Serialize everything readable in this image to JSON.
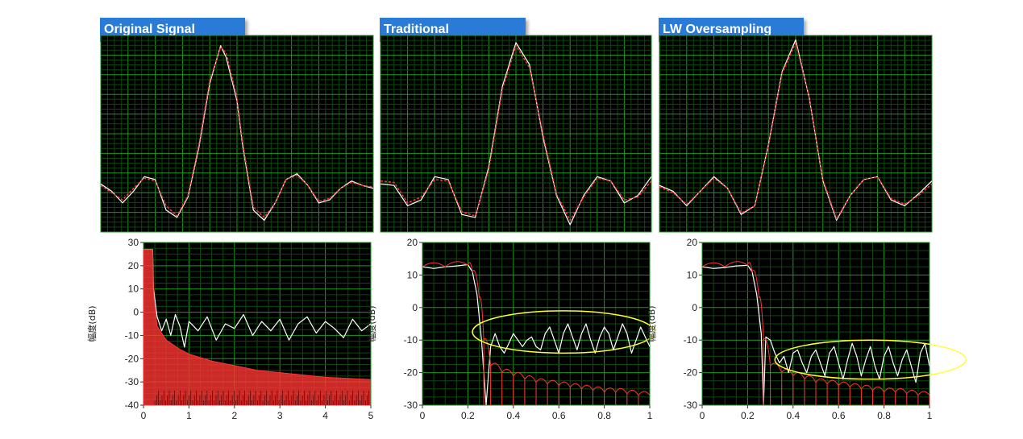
{
  "panels": [
    {
      "title": "Original Signal"
    },
    {
      "title": "Traditional"
    },
    {
      "title": "LW Oversampling"
    }
  ],
  "colors": {
    "plot_bg": "#000000",
    "grid_major": "#1e9a1e",
    "grid_minor": "#0b4a0b",
    "signal": "#ffffff",
    "reference": "#ff3333",
    "highlight": "#ffff33",
    "title_bg": "#2a7ad8"
  },
  "chart_data": [
    {
      "type": "line",
      "panel": "Original Signal",
      "description_hint": "time signal: noisy sinc (white) with smooth sinc reference (red dashed)",
      "xlim": [
        0,
        1
      ],
      "ylim": [
        -0.3,
        1.05
      ],
      "series": [
        {
          "style": "white-solid",
          "x": [
            0,
            0.04,
            0.08,
            0.12,
            0.16,
            0.2,
            0.24,
            0.28,
            0.32,
            0.36,
            0.4,
            0.44,
            0.46,
            0.5,
            0.52,
            0.56,
            0.6,
            0.64,
            0.68,
            0.72,
            0.76,
            0.8,
            0.84,
            0.88,
            0.92,
            0.96,
            1.0
          ],
          "y": [
            0.03,
            -0.02,
            -0.1,
            -0.02,
            0.08,
            0.06,
            -0.15,
            -0.2,
            -0.06,
            0.28,
            0.72,
            0.98,
            0.9,
            0.6,
            0.3,
            -0.15,
            -0.22,
            -0.1,
            0.06,
            0.1,
            0.02,
            -0.1,
            -0.08,
            0.0,
            0.05,
            0.02,
            0.0
          ]
        },
        {
          "style": "red-dashed",
          "x": [
            0,
            0.04,
            0.08,
            0.12,
            0.16,
            0.2,
            0.24,
            0.28,
            0.32,
            0.36,
            0.4,
            0.44,
            0.46,
            0.5,
            0.52,
            0.56,
            0.6,
            0.64,
            0.68,
            0.72,
            0.76,
            0.8,
            0.84,
            0.88,
            0.92,
            0.96,
            1.0
          ],
          "y": [
            0.02,
            -0.03,
            -0.08,
            0.0,
            0.07,
            0.05,
            -0.12,
            -0.19,
            -0.05,
            0.3,
            0.74,
            0.97,
            0.93,
            0.62,
            0.32,
            -0.13,
            -0.2,
            -0.1,
            0.06,
            0.09,
            0.02,
            -0.09,
            -0.07,
            0.0,
            0.04,
            0.02,
            0.01
          ]
        }
      ]
    },
    {
      "type": "line",
      "panel": "Traditional",
      "xlim": [
        0,
        1
      ],
      "ylim": [
        -0.3,
        1.05
      ],
      "series": [
        {
          "style": "white-solid",
          "x": [
            0,
            0.05,
            0.1,
            0.15,
            0.2,
            0.25,
            0.3,
            0.35,
            0.4,
            0.45,
            0.5,
            0.55,
            0.6,
            0.65,
            0.7,
            0.75,
            0.8,
            0.85,
            0.9,
            0.95,
            1.0
          ],
          "y": [
            0.03,
            0.02,
            -0.12,
            -0.08,
            0.08,
            0.06,
            -0.18,
            -0.2,
            0.15,
            0.7,
            1.0,
            0.85,
            0.35,
            -0.05,
            -0.25,
            -0.05,
            0.08,
            0.05,
            -0.1,
            -0.05,
            0.08
          ]
        },
        {
          "style": "red-dashed",
          "x": [
            0,
            0.05,
            0.1,
            0.15,
            0.2,
            0.25,
            0.3,
            0.35,
            0.4,
            0.45,
            0.5,
            0.55,
            0.6,
            0.65,
            0.7,
            0.75,
            0.8,
            0.85,
            0.9,
            0.95,
            1.0
          ],
          "y": [
            0.05,
            0.04,
            -0.1,
            -0.06,
            0.06,
            0.05,
            -0.16,
            -0.19,
            0.13,
            0.68,
            0.98,
            0.83,
            0.37,
            -0.04,
            -0.22,
            -0.06,
            0.07,
            0.05,
            -0.08,
            -0.06,
            0.05
          ]
        }
      ]
    },
    {
      "type": "line",
      "panel": "LW Oversampling",
      "xlim": [
        0,
        1
      ],
      "ylim": [
        -0.3,
        1.05
      ],
      "series": [
        {
          "style": "white-solid",
          "x": [
            0,
            0.05,
            0.1,
            0.15,
            0.2,
            0.25,
            0.3,
            0.35,
            0.4,
            0.45,
            0.5,
            0.55,
            0.6,
            0.65,
            0.7,
            0.75,
            0.8,
            0.85,
            0.9,
            0.95,
            1.0
          ],
          "y": [
            0.02,
            -0.02,
            -0.12,
            -0.02,
            0.08,
            0.0,
            -0.18,
            -0.12,
            0.3,
            0.8,
            1.02,
            0.62,
            0.05,
            -0.22,
            -0.05,
            0.06,
            0.08,
            -0.08,
            -0.12,
            -0.04,
            0.05
          ]
        },
        {
          "style": "red-dashed",
          "x": [
            0,
            0.05,
            0.1,
            0.15,
            0.2,
            0.25,
            0.3,
            0.35,
            0.4,
            0.45,
            0.5,
            0.55,
            0.6,
            0.65,
            0.7,
            0.75,
            0.8,
            0.85,
            0.9,
            0.95,
            1.0
          ],
          "y": [
            0.01,
            -0.03,
            -0.11,
            -0.02,
            0.07,
            0.0,
            -0.17,
            -0.12,
            0.29,
            0.79,
            1.0,
            0.62,
            0.06,
            -0.21,
            -0.05,
            0.06,
            0.08,
            -0.07,
            -0.11,
            -0.05,
            0.03
          ]
        }
      ]
    },
    {
      "type": "line",
      "panel": "Original Signal spectrum",
      "ylabel": "幅度(dB)",
      "xlim": [
        0,
        5
      ],
      "ylim": [
        -40,
        30
      ],
      "xticks": [
        0,
        1,
        2,
        3,
        4,
        5
      ],
      "yticks": [
        -40,
        -30,
        -20,
        -10,
        0,
        10,
        20,
        30
      ],
      "series": [
        {
          "style": "white-solid",
          "x": [
            0,
            0.1,
            0.2,
            0.22,
            0.3,
            0.4,
            0.5,
            0.6,
            0.7,
            0.8,
            0.9,
            1.0,
            1.2,
            1.4,
            1.6,
            1.8,
            2.0,
            2.2,
            2.4,
            2.6,
            2.8,
            3.0,
            3.2,
            3.4,
            3.6,
            3.8,
            4.0,
            4.2,
            4.4,
            4.6,
            4.8,
            5.0
          ],
          "y": [
            27,
            27,
            27,
            10,
            -2,
            -8,
            -3,
            -10,
            -1,
            -6,
            -15,
            -4,
            -8,
            -2,
            -12,
            -5,
            -7,
            -1,
            -10,
            -4,
            -8,
            -3,
            -12,
            -5,
            -2,
            -9,
            -4,
            -7,
            -11,
            -3,
            -8,
            -5
          ]
        },
        {
          "style": "red-fill",
          "x": [
            0,
            0.1,
            0.2,
            0.22,
            0.3,
            0.5,
            0.8,
            1.0,
            1.5,
            2.0,
            2.5,
            3.0,
            3.5,
            4.0,
            4.5,
            5.0
          ],
          "y": [
            27,
            27,
            27,
            8,
            -6,
            -12,
            -16,
            -18,
            -21,
            -23,
            -25,
            -26,
            -27,
            -28,
            -28.5,
            -29
          ]
        }
      ]
    },
    {
      "type": "line",
      "panel": "Traditional spectrum",
      "ylabel": "幅度(dB)",
      "xlim": [
        0,
        1
      ],
      "ylim": [
        -30,
        20
      ],
      "xticks": [
        0,
        0.2,
        0.4,
        0.6,
        0.8,
        1
      ],
      "yticks": [
        -30,
        -20,
        -10,
        0,
        10,
        20
      ],
      "annotation": {
        "type": "ellipse",
        "cx": 0.62,
        "cy": -7.5,
        "rx": 0.4,
        "ry": 6.5
      },
      "series": [
        {
          "style": "white-solid",
          "x": [
            0,
            0.05,
            0.1,
            0.15,
            0.2,
            0.22,
            0.24,
            0.26,
            0.28,
            0.3,
            0.32,
            0.34,
            0.36,
            0.38,
            0.4,
            0.42,
            0.44,
            0.46,
            0.48,
            0.5,
            0.52,
            0.54,
            0.56,
            0.58,
            0.6,
            0.62,
            0.64,
            0.66,
            0.68,
            0.7,
            0.72,
            0.74,
            0.76,
            0.78,
            0.8,
            0.82,
            0.84,
            0.86,
            0.88,
            0.9,
            0.92,
            0.94,
            0.96,
            0.98,
            1.0
          ],
          "y": [
            12.5,
            12,
            12.5,
            12.8,
            13.2,
            11,
            4,
            -10,
            -30,
            -12,
            -8,
            -12,
            -14,
            -11,
            -8,
            -10,
            -12,
            -10,
            -9,
            -12,
            -13,
            -8,
            -6,
            -10,
            -14,
            -8,
            -5,
            -9,
            -13,
            -8,
            -5,
            -10,
            -14,
            -9,
            -6,
            -8,
            -13,
            -9,
            -5,
            -8,
            -14,
            -10,
            -6,
            -9,
            -12
          ]
        },
        {
          "style": "red-bumps",
          "x": [
            0,
            0.1,
            0.2,
            0.22,
            0.25,
            0.27,
            0.3,
            0.35,
            0.4,
            0.45,
            0.5,
            0.55,
            0.6,
            0.65,
            0.7,
            0.75,
            0.8,
            0.85,
            0.9,
            0.95,
            1.0
          ],
          "y": [
            12.5,
            12.5,
            13,
            11,
            3,
            -10,
            -18,
            -20,
            -21,
            -22,
            -23,
            -23.5,
            -24,
            -24.5,
            -25,
            -25.5,
            -26,
            -26,
            -26.5,
            -27,
            -27
          ]
        }
      ]
    },
    {
      "type": "line",
      "panel": "LW Oversampling spectrum",
      "ylabel": "幅度(dB)",
      "xlim": [
        0,
        1
      ],
      "ylim": [
        -30,
        20
      ],
      "xticks": [
        0,
        0.2,
        0.4,
        0.6,
        0.8,
        1
      ],
      "yticks": [
        -30,
        -20,
        -10,
        0,
        10,
        20
      ],
      "annotation": {
        "type": "ellipse",
        "cx": 0.74,
        "cy": -16,
        "rx": 0.42,
        "ry": 6
      },
      "series": [
        {
          "style": "white-solid",
          "x": [
            0,
            0.05,
            0.1,
            0.15,
            0.2,
            0.22,
            0.24,
            0.26,
            0.27,
            0.28,
            0.3,
            0.32,
            0.34,
            0.36,
            0.38,
            0.4,
            0.42,
            0.44,
            0.46,
            0.48,
            0.5,
            0.52,
            0.54,
            0.56,
            0.58,
            0.6,
            0.62,
            0.64,
            0.66,
            0.68,
            0.7,
            0.72,
            0.74,
            0.76,
            0.78,
            0.8,
            0.82,
            0.84,
            0.86,
            0.88,
            0.9,
            0.92,
            0.94,
            0.96,
            0.98,
            1.0
          ],
          "y": [
            12.5,
            12,
            12.3,
            12.8,
            13,
            11,
            4,
            -8,
            -30,
            -9,
            -10,
            -14,
            -17,
            -15,
            -20,
            -14,
            -13,
            -17,
            -20,
            -15,
            -13,
            -17,
            -21,
            -14,
            -12,
            -17,
            -22,
            -16,
            -11,
            -15,
            -21,
            -16,
            -12,
            -18,
            -22,
            -15,
            -12,
            -17,
            -21,
            -16,
            -13,
            -18,
            -23,
            -14,
            -11,
            -18
          ]
        },
        {
          "style": "red-bumps",
          "x": [
            0,
            0.1,
            0.2,
            0.22,
            0.25,
            0.27,
            0.3,
            0.35,
            0.4,
            0.45,
            0.5,
            0.55,
            0.6,
            0.65,
            0.7,
            0.75,
            0.8,
            0.85,
            0.9,
            0.95,
            1.0
          ],
          "y": [
            12.5,
            12.5,
            13,
            11,
            3,
            -10,
            -18,
            -20,
            -21,
            -22,
            -23,
            -23.5,
            -24,
            -24.5,
            -25,
            -25.5,
            -26,
            -26,
            -26.5,
            -27,
            -27
          ]
        }
      ]
    }
  ]
}
